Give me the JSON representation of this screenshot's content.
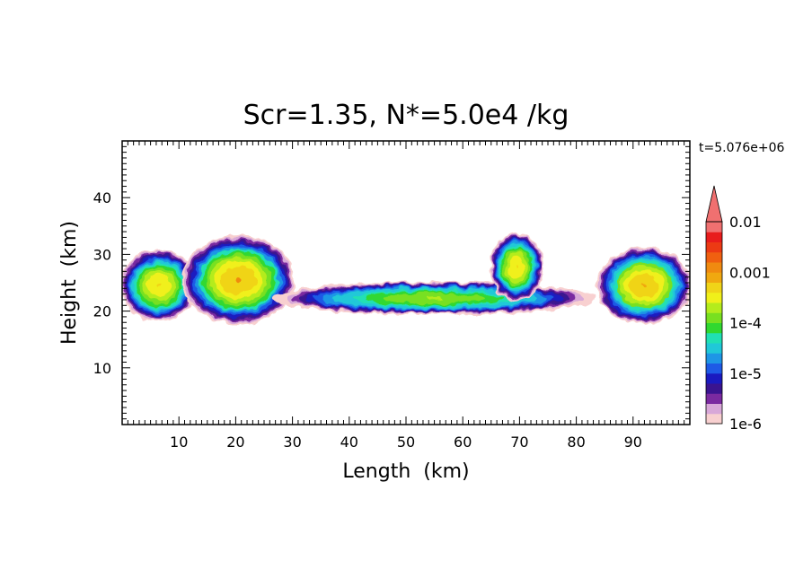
{
  "chart_data": {
    "type": "heatmap",
    "title": "Scr=1.35, N*=5.0e4 /kg",
    "time_label": "t=5.076e+06",
    "xlabel": "Length  (km)",
    "ylabel": "Height  (km)",
    "xlim": [
      0,
      100
    ],
    "ylim": [
      0,
      50
    ],
    "x_ticks": [
      10,
      20,
      30,
      40,
      50,
      60,
      70,
      80,
      90
    ],
    "y_ticks": [
      10,
      20,
      30,
      40
    ],
    "colorbar": {
      "scale": "log",
      "min": 1e-06,
      "max": 0.01,
      "extend": "max",
      "tick_values": [
        0.01,
        0.001,
        0.0001,
        1e-05,
        1e-06
      ],
      "tick_labels": [
        "0.01",
        "0.001",
        "1e-4",
        "1e-5",
        "1e-6"
      ],
      "colors": [
        "#f8d0d0",
        "#d8a8d8",
        "#7a2aa0",
        "#3a1490",
        "#1a1ac0",
        "#1e5ae6",
        "#1e96e6",
        "#20c8d8",
        "#20e0b4",
        "#30d830",
        "#78e020",
        "#b4ec1c",
        "#f0f01a",
        "#f0d418",
        "#f0a810",
        "#f08a10",
        "#f06010",
        "#ec3a14",
        "#e81c1c",
        "#f07070"
      ]
    },
    "field_regions": [
      {
        "x": [
          0,
          13
        ],
        "y": [
          18.5,
          30.5
        ],
        "peak": 0.0006
      },
      {
        "x": [
          11,
          30
        ],
        "y": [
          18,
          33
        ],
        "peak": 0.001
      },
      {
        "x": [
          28,
          82
        ],
        "y": [
          19.5,
          25
        ],
        "peak": 0.0002
      },
      {
        "x": [
          65,
          74
        ],
        "y": [
          22,
          33.5
        ],
        "peak": 0.0006
      },
      {
        "x": [
          84,
          100
        ],
        "y": [
          18,
          31
        ],
        "peak": 0.0008
      }
    ]
  }
}
